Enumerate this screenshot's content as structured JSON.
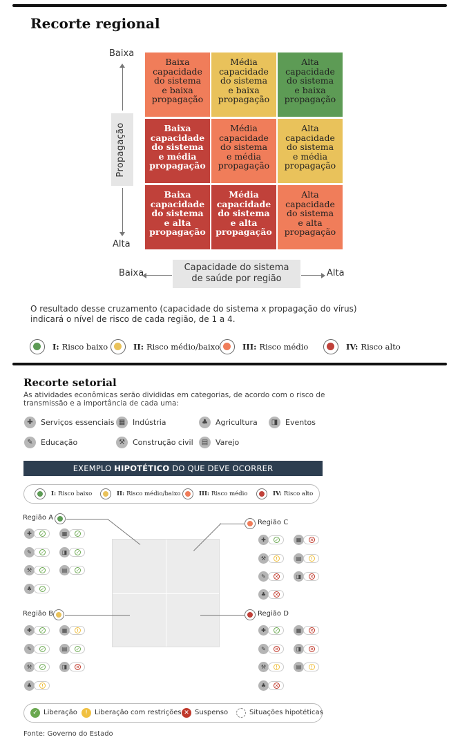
{
  "regional": {
    "title": "Recorte regional",
    "cells": [
      [
        "Baixa\ncapacidade\ndo sistema\ne baixa\npropagação",
        "Média\ncapacidade\ndo sistema\ne baixa\npropagação",
        "Alta\ncapacidade\ndo sistema\ne baixa\npropagação"
      ],
      [
        "Baixa\ncapacidade\ndo sistema\ne média\npropagação",
        "Média\ncapacidade\ndo sistema\ne média\npropagação",
        "Alta\ncapacidade\ndo sistema\ne média\npropagação"
      ],
      [
        "Baixa\ncapacidade\ndo sistema\ne alta\npropagação",
        "Média\ncapacidade\ndo sistema\ne alta\npropagação",
        "Alta\ncapacidade\ndo sistema\ne alta\npropagação"
      ]
    ],
    "colors": {
      "green": "#5d9b55",
      "yellow": "#e9c25b",
      "orange": "#f07d5a",
      "red": "#c0413a"
    },
    "y_top": "Baixa",
    "y_bottom": "Alta",
    "y_label": "Propagação",
    "x_left": "Baixa",
    "x_right": "Alta",
    "x_label": "Capacidade do sistema\nde saúde por região",
    "description": "O resultado desse cruzamento (capacidade do sistema x propagação do vírus) indicará o nível de risco de cada região, de 1 a 4.",
    "legend": [
      {
        "num": "I:",
        "text": "Risco baixo",
        "color": "#5d9b55"
      },
      {
        "num": "II:",
        "text": "Risco médio/baixo",
        "color": "#e9c25b"
      },
      {
        "num": "III:",
        "text": "Risco médio",
        "color": "#f07d5a"
      },
      {
        "num": "IV:",
        "text": "Risco alto",
        "color": "#c0413a"
      }
    ]
  },
  "setorial": {
    "title": "Recorte setorial",
    "subtitle": "As atividades econômicas serão divididas em categorias, de acordo com o risco de transmissão e a importância de cada uma:",
    "sectors": [
      {
        "label": "Serviços essenciais",
        "icon": "cross-icon"
      },
      {
        "label": "Indústria",
        "icon": "factory-icon"
      },
      {
        "label": "Agricultura",
        "icon": "leaf-icon"
      },
      {
        "label": "Eventos",
        "icon": "ticket-icon"
      },
      {
        "label": "Educação",
        "icon": "pencil-icon"
      },
      {
        "label": "Construção civil",
        "icon": "hammer-icon"
      },
      {
        "label": "Varejo",
        "icon": "storefront-icon"
      }
    ],
    "banner_pre": "EXEMPLO ",
    "banner_bold": "HIPOTÉTICO",
    "banner_post": " DO QUE DEVE OCORRER",
    "regions": {
      "a": "Região A",
      "b": "Região B",
      "c": "Região C",
      "d": "Região D"
    },
    "status_legend": [
      {
        "text": "Liberação",
        "color": "#6aa84f"
      },
      {
        "text": "Liberação com restrições",
        "color": "#f0c040"
      },
      {
        "text": "Suspenso",
        "color": "#c0392b"
      },
      {
        "text": "Situações hipotéticas",
        "color": "#ffffff"
      }
    ],
    "source": "Fonte: Governo do Estado"
  }
}
